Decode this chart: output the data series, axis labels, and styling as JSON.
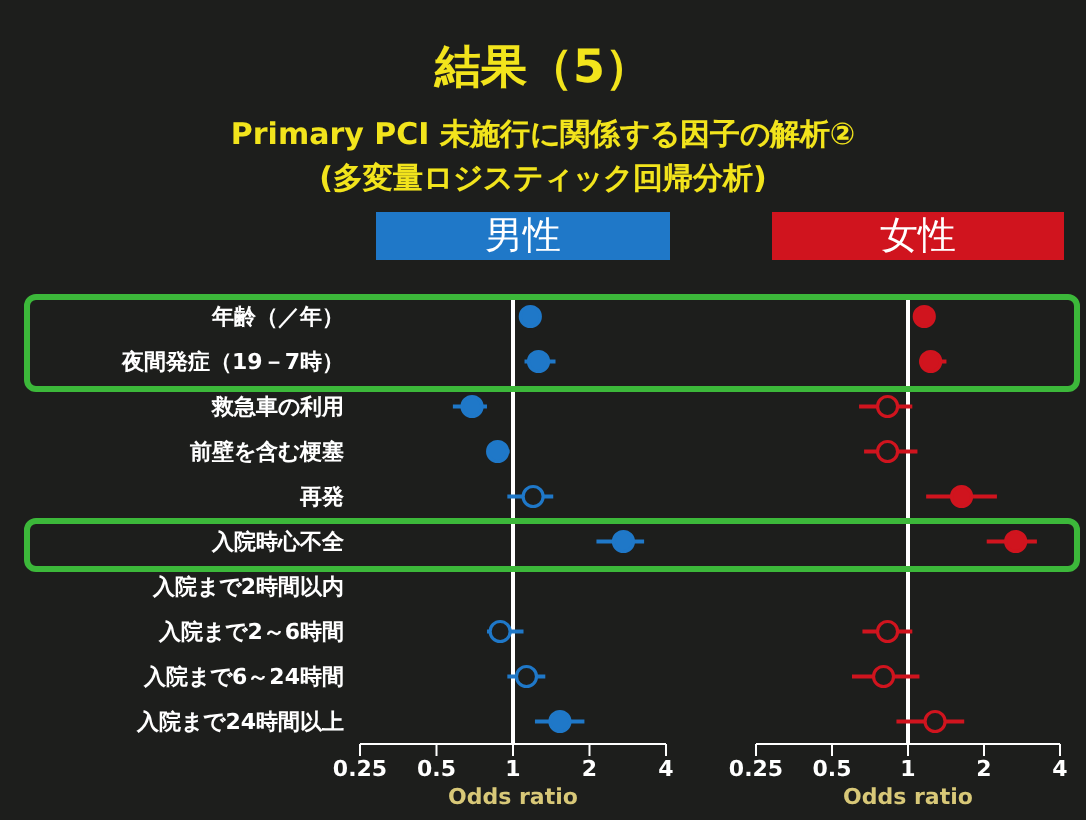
{
  "chart_data": [
    {
      "type": "scatter",
      "orientation": "horizontal",
      "title": "結果（5）",
      "subtitle": "Primary PCI 未施行に関係する因子の解析②\n(多変量ロジスティック回帰分析)",
      "xlabel": "Odds ratio",
      "categories": [
        "年齢（／年）",
        "夜間発症（19－7時）",
        "救急車の利用",
        "前壁を含む梗塞",
        "再発",
        "入院時心不全",
        "入院まで2時間以内",
        "入院まで2～6時間",
        "入院まで6～24時間",
        "入院まで24時間以上"
      ],
      "series": [
        {
          "name": "男性",
          "color": "#1f78c8",
          "values": [
            1.17,
            1.26,
            0.69,
            0.87,
            null,
            2.72,
            null,
            null,
            null,
            1.53
          ],
          "errors": [
            null,
            [
              1.11,
              1.47
            ],
            [
              0.58,
              0.79
            ],
            [
              0.79,
              0.97
            ],
            null,
            [
              2.13,
              3.28
            ],
            null,
            null,
            null,
            [
              1.22,
              1.91
            ]
          ]
        },
        {
          "color": "#1f78c8",
          "values": [
            null,
            null,
            null,
            null,
            1.2,
            null,
            null,
            0.89,
            1.13,
            null
          ],
          "errors": [
            null,
            null,
            null,
            null,
            [
              0.95,
              1.44
            ],
            null,
            null,
            [
              0.79,
              1.1
            ],
            [
              0.95,
              1.34
            ],
            null
          ]
        }
      ],
      "xlim": [
        0.25,
        4
      ],
      "xticks": [
        0.25,
        0.5,
        1,
        2,
        4
      ],
      "log": "x",
      "ref_lines": [
        {
          "axis": "x",
          "value": 1,
          "color": "#ffffff"
        }
      ],
      "legend": "top",
      "marker": "circle"
    },
    {
      "type": "scatter",
      "orientation": "horizontal",
      "xlabel": "Odds ratio",
      "tick_labels": "x",
      "categories": [
        null,
        null,
        null,
        null,
        null,
        null,
        null,
        null,
        null,
        null
      ],
      "series": [
        {
          "name": "女性",
          "color": "#d0141e",
          "values": [
            1.16,
            1.23,
            null,
            null,
            1.63,
            2.67,
            null,
            null,
            null,
            null
          ],
          "errors": [
            null,
            [
              1.11,
              1.42
            ],
            null,
            null,
            [
              1.18,
              2.25
            ],
            [
              2.05,
              3.24
            ],
            null,
            null,
            null,
            null
          ]
        },
        {
          "color": "#d0141e",
          "values": [
            null,
            null,
            0.83,
            0.83,
            null,
            null,
            null,
            0.83,
            0.8,
            1.28
          ],
          "errors": [
            null,
            null,
            [
              0.64,
              1.04
            ],
            [
              0.67,
              1.09
            ],
            null,
            null,
            null,
            [
              0.66,
              1.04
            ],
            [
              0.6,
              1.11
            ],
            [
              0.9,
              1.67
            ]
          ]
        }
      ],
      "xlim": [
        0.25,
        4
      ],
      "xticks": [
        0.25,
        0.5,
        1,
        2,
        4
      ],
      "log": "x",
      "ref_lines": [
        {
          "axis": "x",
          "value": 1,
          "color": "#ffffff"
        }
      ],
      "legend": "top",
      "marker": "circle"
    }
  ]
}
